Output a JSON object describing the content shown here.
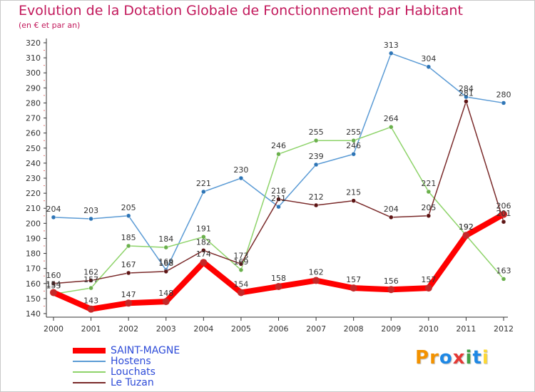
{
  "title": "Evolution de la Dotation Globale de Fonctionnement par Habitant",
  "subtitle": "(en € et par an)",
  "logo": {
    "text": "Proxiti",
    "letters": [
      "P",
      "r",
      "o",
      "x",
      "i",
      "t",
      "i"
    ],
    "colors": [
      "#f39200",
      "#f39200",
      "#1e88e5",
      "#e53935",
      "#43a047",
      "#1e88e5",
      "#fdd835"
    ]
  },
  "chart_data": {
    "type": "line",
    "x": [
      "2000",
      "2001",
      "2002",
      "2003",
      "2004",
      "2005",
      "2006",
      "2007",
      "2008",
      "2009",
      "2010",
      "2011",
      "2012"
    ],
    "ylim": [
      140,
      320
    ],
    "yticks": [
      140,
      150,
      160,
      170,
      180,
      190,
      200,
      210,
      220,
      230,
      240,
      250,
      260,
      270,
      280,
      290,
      300,
      310,
      320
    ],
    "grid": false,
    "legend_position": "bottom-left",
    "series": [
      {
        "name": "SAINT-MAGNE",
        "color": "#ff0000",
        "width": 8,
        "marker": "#c62828",
        "values": [
          154,
          143,
          147,
          148,
          174,
          154,
          158,
          162,
          157,
          156,
          157,
          192,
          206
        ],
        "labels": [
          "154",
          "143",
          "147",
          "148",
          "174",
          "154",
          "158",
          "162",
          "157",
          "156",
          "157",
          "192",
          "206"
        ]
      },
      {
        "name": "Hostens",
        "color": "#5b9bd5",
        "width": 1.5,
        "marker": "#2e75b6",
        "values": [
          204,
          203,
          205,
          169,
          221,
          230,
          211,
          239,
          246,
          313,
          304,
          284,
          280
        ],
        "labels": [
          "204",
          "203",
          "205",
          "169",
          "221",
          "230",
          "211",
          "239",
          "246",
          "313",
          "304",
          "284",
          "280"
        ]
      },
      {
        "name": "Louchats",
        "color": "#8ed36a",
        "width": 1.5,
        "marker": "#6ab04c",
        "values": [
          153,
          157,
          185,
          184,
          191,
          169,
          246,
          255,
          255,
          264,
          221,
          192,
          163
        ],
        "labels": [
          "153",
          "157",
          "185",
          "184",
          "191",
          "169",
          "246",
          "255",
          "255",
          "264",
          "221",
          "192",
          "163"
        ]
      },
      {
        "name": "Le Tuzan",
        "color": "#7a2a2a",
        "width": 1.5,
        "marker": "#5d1414",
        "values": [
          160,
          162,
          167,
          168,
          182,
          173,
          216,
          212,
          215,
          204,
          205,
          281,
          201
        ],
        "labels": [
          "160",
          "162",
          "167",
          "168",
          "182",
          "173",
          "216",
          "212",
          "215",
          "204",
          "205",
          "281",
          "201"
        ]
      }
    ]
  }
}
